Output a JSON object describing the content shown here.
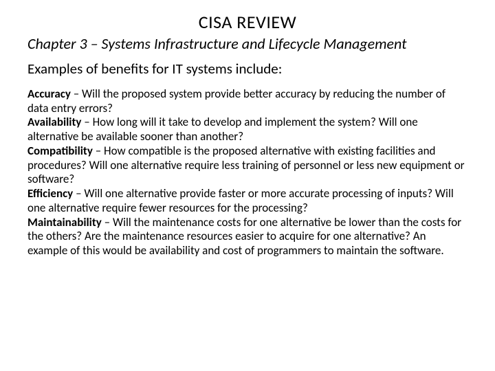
{
  "title": "CISA REVIEW",
  "subtitle": "Chapter 3 – Systems Infrastructure and Lifecycle Management",
  "intro": "Examples of benefits for IT systems include:",
  "benefits": [
    {
      "term": "Accuracy",
      "text": " – Will the proposed system provide better accuracy by reducing the number of data entry errors?"
    },
    {
      "term": "Availability",
      "text": " – How long will it take to develop and implement the system? Will one alternative be available sooner than another?"
    },
    {
      "term": "Compatibility",
      "text": " – How compatible is the proposed alternative with existing facilities and procedures? Will one alternative require less training of personnel or less new equipment or software?"
    },
    {
      "term": "Efficiency",
      "text": " – Will one alternative provide faster or more accurate processing of inputs? Will one alternative require fewer resources for the processing?"
    },
    {
      "term": "Maintainability",
      "text": " – Will the maintenance costs for one alternative be lower than the costs for the others? Are the maintenance resources easier to acquire for one alternative? An example of this would be availability and cost of programmers to maintain the software."
    }
  ],
  "colors": {
    "background": "#ffffff",
    "text": "#000000"
  },
  "typography": {
    "title_fontsize": 26,
    "subtitle_fontsize": 22,
    "intro_fontsize": 21,
    "body_fontsize": 17,
    "line_height": 1.22
  }
}
